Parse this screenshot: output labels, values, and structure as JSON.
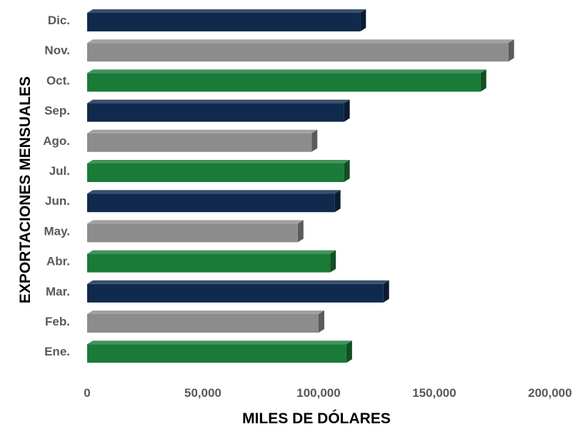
{
  "chart_data": {
    "type": "bar",
    "orientation": "horizontal",
    "title": "",
    "xlabel": "MILES DE DÓLARES",
    "ylabel": "EXPORTACIONES MENSUALES",
    "categories": [
      "Ene.",
      "Feb.",
      "Mar.",
      "Abr.",
      "May.",
      "Jun.",
      "Jul.",
      "Ago.",
      "Sep.",
      "Oct.",
      "Nov.",
      "Dic."
    ],
    "values": [
      112000,
      100000,
      128000,
      105000,
      91000,
      107000,
      111000,
      97000,
      111000,
      170000,
      182000,
      118000
    ],
    "colors": [
      "#1a7a38",
      "#8c8c8c",
      "#0f2a4d",
      "#1a7a38",
      "#8c8c8c",
      "#0f2a4d",
      "#1a7a38",
      "#8c8c8c",
      "#0f2a4d",
      "#1a7a38",
      "#8c8c8c",
      "#0f2a4d"
    ],
    "xlim": [
      0,
      200000
    ],
    "xticks": [
      0,
      50000,
      100000,
      150000,
      200000
    ],
    "xtick_labels": [
      "0",
      "50,000",
      "100,000",
      "150,000",
      "200,000"
    ],
    "grid": false,
    "legend": "none",
    "style": "3d"
  }
}
